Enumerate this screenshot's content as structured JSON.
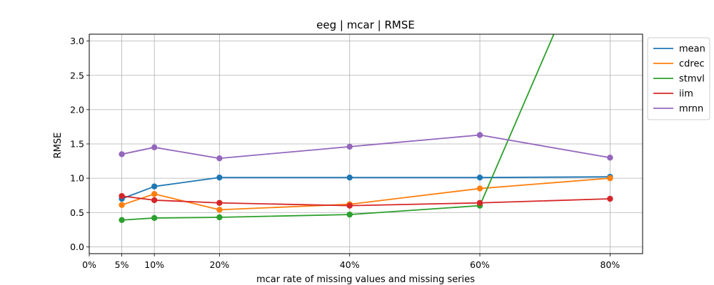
{
  "chart_data": {
    "type": "line",
    "title": "eeg | mcar | RMSE",
    "xlabel": "mcar rate of missing values and missing series",
    "ylabel": "RMSE",
    "x": [
      5,
      10,
      20,
      40,
      60,
      80
    ],
    "x_ticks": [
      0,
      5,
      10,
      20,
      40,
      60,
      80
    ],
    "x_tick_labels": [
      "0%",
      "5%",
      "10%",
      "20%",
      "40%",
      "60%",
      "80%"
    ],
    "y_ticks": [
      0.0,
      0.5,
      1.0,
      1.5,
      2.0,
      2.5,
      3.0
    ],
    "y_tick_labels": [
      "0.0",
      "0.5",
      "1.0",
      "1.5",
      "2.0",
      "2.5",
      "3.0"
    ],
    "xlim": [
      0,
      85
    ],
    "ylim": [
      -0.1,
      3.1
    ],
    "grid": true,
    "legend_position": "outside-right",
    "series": [
      {
        "name": "mean",
        "color": "#1f77b4",
        "values": [
          0.7,
          0.88,
          1.01,
          1.01,
          1.01,
          1.02
        ]
      },
      {
        "name": "cdrec",
        "color": "#ff7f0e",
        "values": [
          0.61,
          0.77,
          0.54,
          0.62,
          0.85,
          1.0
        ]
      },
      {
        "name": "stmvl",
        "color": "#2ca02c",
        "values": [
          0.39,
          0.42,
          0.43,
          0.47,
          0.6,
          5.0
        ]
      },
      {
        "name": "iim",
        "color": "#d62728",
        "values": [
          0.74,
          0.68,
          0.64,
          0.6,
          0.64,
          0.7
        ]
      },
      {
        "name": "mrnn",
        "color": "#9467bd",
        "values": [
          1.35,
          1.45,
          1.29,
          1.46,
          1.63,
          1.3
        ]
      }
    ]
  }
}
